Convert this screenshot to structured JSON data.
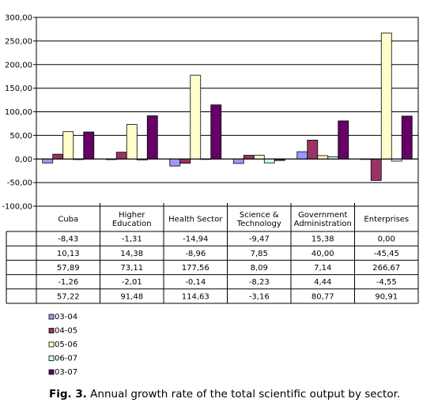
{
  "figure": {
    "label": "Fig. 3.",
    "text": "Annual growth rate of the total scientific output by sector."
  },
  "colors": {
    "03-04": "#9999ff",
    "04-05": "#993366",
    "05-06": "#ffffcc",
    "06-07": "#ccffff",
    "03-07": "#660066"
  },
  "chart_data": {
    "type": "bar",
    "title": "",
    "xlabel": "",
    "ylabel": "",
    "ylim": [
      -100,
      300
    ],
    "yticks": [
      "300,00",
      "250,00",
      "200,00",
      "150,00",
      "100,00",
      "50,00",
      "0,00",
      "-50,00",
      "-100,00"
    ],
    "yticks_values": [
      300,
      250,
      200,
      150,
      100,
      50,
      0,
      -50,
      -100
    ],
    "grid": "horizontal",
    "legend": "bottom-left",
    "categories": [
      [
        "Cuba"
      ],
      [
        "Higher",
        "Education"
      ],
      [
        "Health Sector"
      ],
      [
        "Science &",
        "Technology"
      ],
      [
        "Government",
        "Administration"
      ],
      [
        "Enterprises"
      ]
    ],
    "series": [
      {
        "name": "03-04",
        "values": [
          -8.43,
          -1.31,
          -14.94,
          -9.47,
          15.38,
          0.0
        ],
        "labels": [
          "-8,43",
          "-1,31",
          "-14,94",
          "-9,47",
          "15,38",
          "0,00"
        ]
      },
      {
        "name": "04-05",
        "values": [
          10.13,
          14.38,
          -8.96,
          7.85,
          40.0,
          -45.45
        ],
        "labels": [
          "10,13",
          "14,38",
          "-8,96",
          "7,85",
          "40,00",
          "-45,45"
        ]
      },
      {
        "name": "05-06",
        "values": [
          57.89,
          73.11,
          177.56,
          8.09,
          7.14,
          266.67
        ],
        "labels": [
          "57,89",
          "73,11",
          "177,56",
          "8,09",
          "7,14",
          "266,67"
        ]
      },
      {
        "name": "06-07",
        "values": [
          -1.26,
          -2.01,
          -0.14,
          -8.23,
          4.44,
          -4.55
        ],
        "labels": [
          "-1,26",
          "-2,01",
          "-0,14",
          "-8,23",
          "4,44",
          "-4,55"
        ]
      },
      {
        "name": "03-07",
        "values": [
          57.22,
          91.48,
          114.63,
          -3.16,
          80.77,
          90.91
        ],
        "labels": [
          "57,22",
          "91,48",
          "114,63",
          "-3,16",
          "80,77",
          "90,91"
        ]
      }
    ]
  }
}
